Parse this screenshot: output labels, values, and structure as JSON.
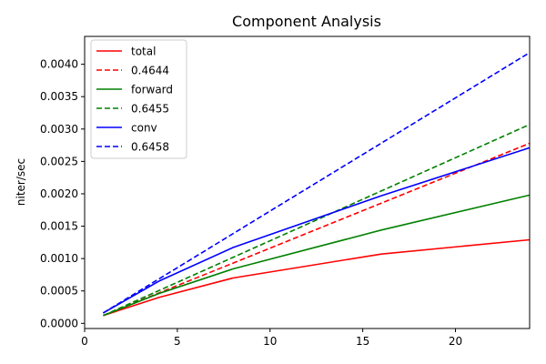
{
  "chart_data": {
    "type": "line",
    "title": "Component Analysis",
    "xlabel": "",
    "ylabel": "niter/sec",
    "xlim": [
      0,
      24
    ],
    "ylim": [
      -8e-05,
      0.00443
    ],
    "xticks": [
      0,
      5,
      10,
      15,
      20
    ],
    "xtick_labels": [
      "0",
      "5",
      "10",
      "15",
      "20"
    ],
    "yticks": [
      0.0,
      0.0005,
      0.001,
      0.0015,
      0.002,
      0.0025,
      0.003,
      0.0035,
      0.004
    ],
    "ytick_labels": [
      "0.0000",
      "0.0005",
      "0.0010",
      "0.0015",
      "0.0020",
      "0.0025",
      "0.0030",
      "0.0035",
      "0.0040"
    ],
    "grid": false,
    "legend_position": "top-left",
    "series": [
      {
        "name": "total",
        "color": "#ff0000",
        "style": "solid",
        "x": [
          1,
          4,
          8,
          16,
          24
        ],
        "y": [
          0.00012,
          0.0004,
          0.0007,
          0.00107,
          0.00129
        ]
      },
      {
        "name": "0.4644",
        "color": "#ff0000",
        "style": "dashed",
        "x": [
          1,
          24
        ],
        "y": [
          0.00012,
          0.00278
        ]
      },
      {
        "name": "forward",
        "color": "#008000",
        "style": "solid",
        "x": [
          1,
          4,
          8,
          16,
          24
        ],
        "y": [
          0.00012,
          0.00046,
          0.00084,
          0.00144,
          0.00198
        ]
      },
      {
        "name": "0.6455",
        "color": "#008000",
        "style": "dashed",
        "x": [
          1,
          24
        ],
        "y": [
          0.00012,
          0.00307
        ]
      },
      {
        "name": "conv",
        "color": "#0000ff",
        "style": "solid",
        "x": [
          1,
          4,
          8,
          16,
          24
        ],
        "y": [
          0.00016,
          0.00065,
          0.00117,
          0.00197,
          0.00271
        ]
      },
      {
        "name": "0.6458",
        "color": "#0000ff",
        "style": "dashed",
        "x": [
          1,
          24
        ],
        "y": [
          0.00016,
          0.00418
        ]
      }
    ]
  }
}
